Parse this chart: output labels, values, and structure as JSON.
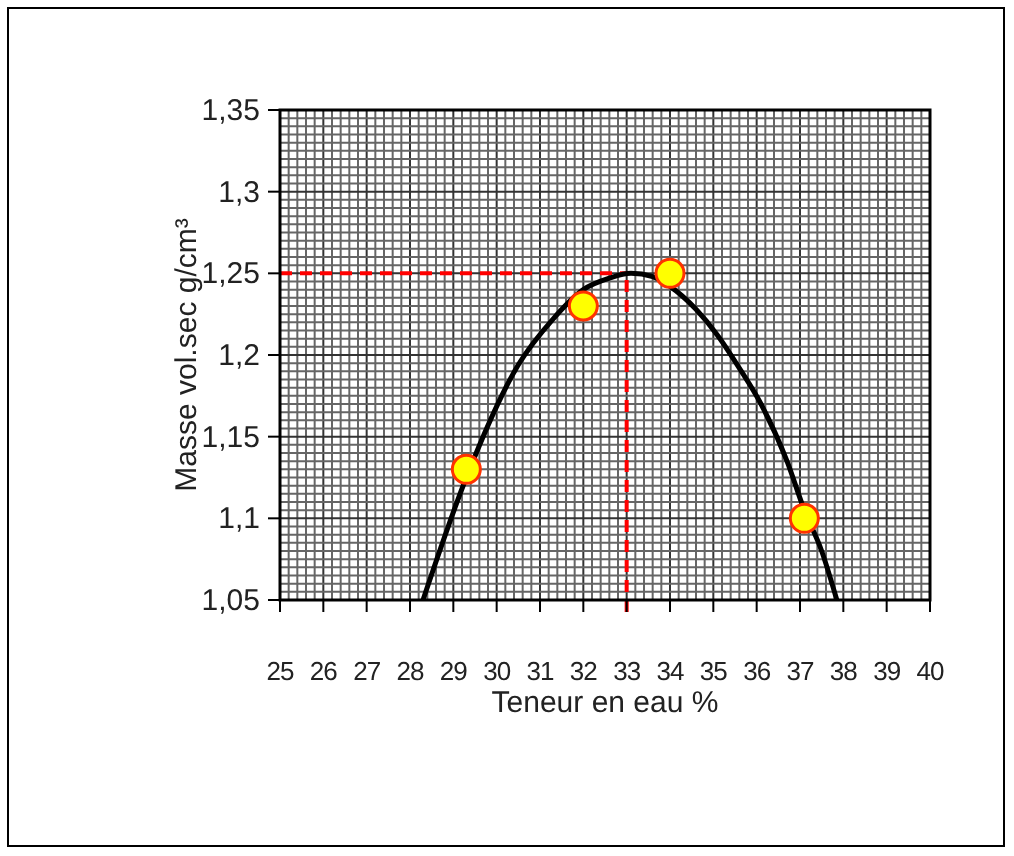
{
  "chart_data": {
    "type": "line",
    "xlabel": "Teneur en eau %",
    "ylabel": "Masse vol.sec g/cm³",
    "xlim": [
      25,
      40
    ],
    "ylim": [
      1.05,
      1.35
    ],
    "xticks": [
      25,
      26,
      27,
      28,
      29,
      30,
      31,
      32,
      33,
      34,
      35,
      36,
      37,
      38,
      39,
      40
    ],
    "yticks": [
      {
        "value": 1.05,
        "label": "1,05"
      },
      {
        "value": 1.1,
        "label": "1,1"
      },
      {
        "value": 1.15,
        "label": "1,15"
      },
      {
        "value": 1.2,
        "label": "1,2"
      },
      {
        "value": 1.25,
        "label": "1,25"
      },
      {
        "value": 1.3,
        "label": "1,3"
      },
      {
        "value": 1.35,
        "label": "1,35"
      }
    ],
    "grid": true,
    "series": [
      {
        "color": "#000000",
        "marker": "none",
        "x": [
          28.3,
          29.3,
          30.5,
          31.3,
          32,
          32.6,
          33.1,
          33.6,
          34,
          34.6,
          35.1,
          35.6,
          36.1,
          36.7,
          37.1,
          37.5,
          37.85
        ],
        "values": [
          1.05,
          1.125,
          1.194,
          1.222,
          1.24,
          1.247,
          1.25,
          1.248,
          1.242,
          1.228,
          1.212,
          1.192,
          1.17,
          1.135,
          1.105,
          1.08,
          1.05
        ]
      },
      {
        "type": "scatter",
        "color": "#ffff00",
        "marker": "circle",
        "x": [
          29.3,
          32,
          34,
          37.1
        ],
        "values": [
          1.13,
          1.23,
          1.25,
          1.1
        ]
      }
    ],
    "ref_lines": [
      {
        "axis": "y",
        "value": 1.25,
        "color": "#ff0000",
        "line_style": "dashed"
      },
      {
        "axis": "x",
        "value": 33,
        "color": "#ff0000",
        "line_style": "dashed"
      }
    ]
  }
}
